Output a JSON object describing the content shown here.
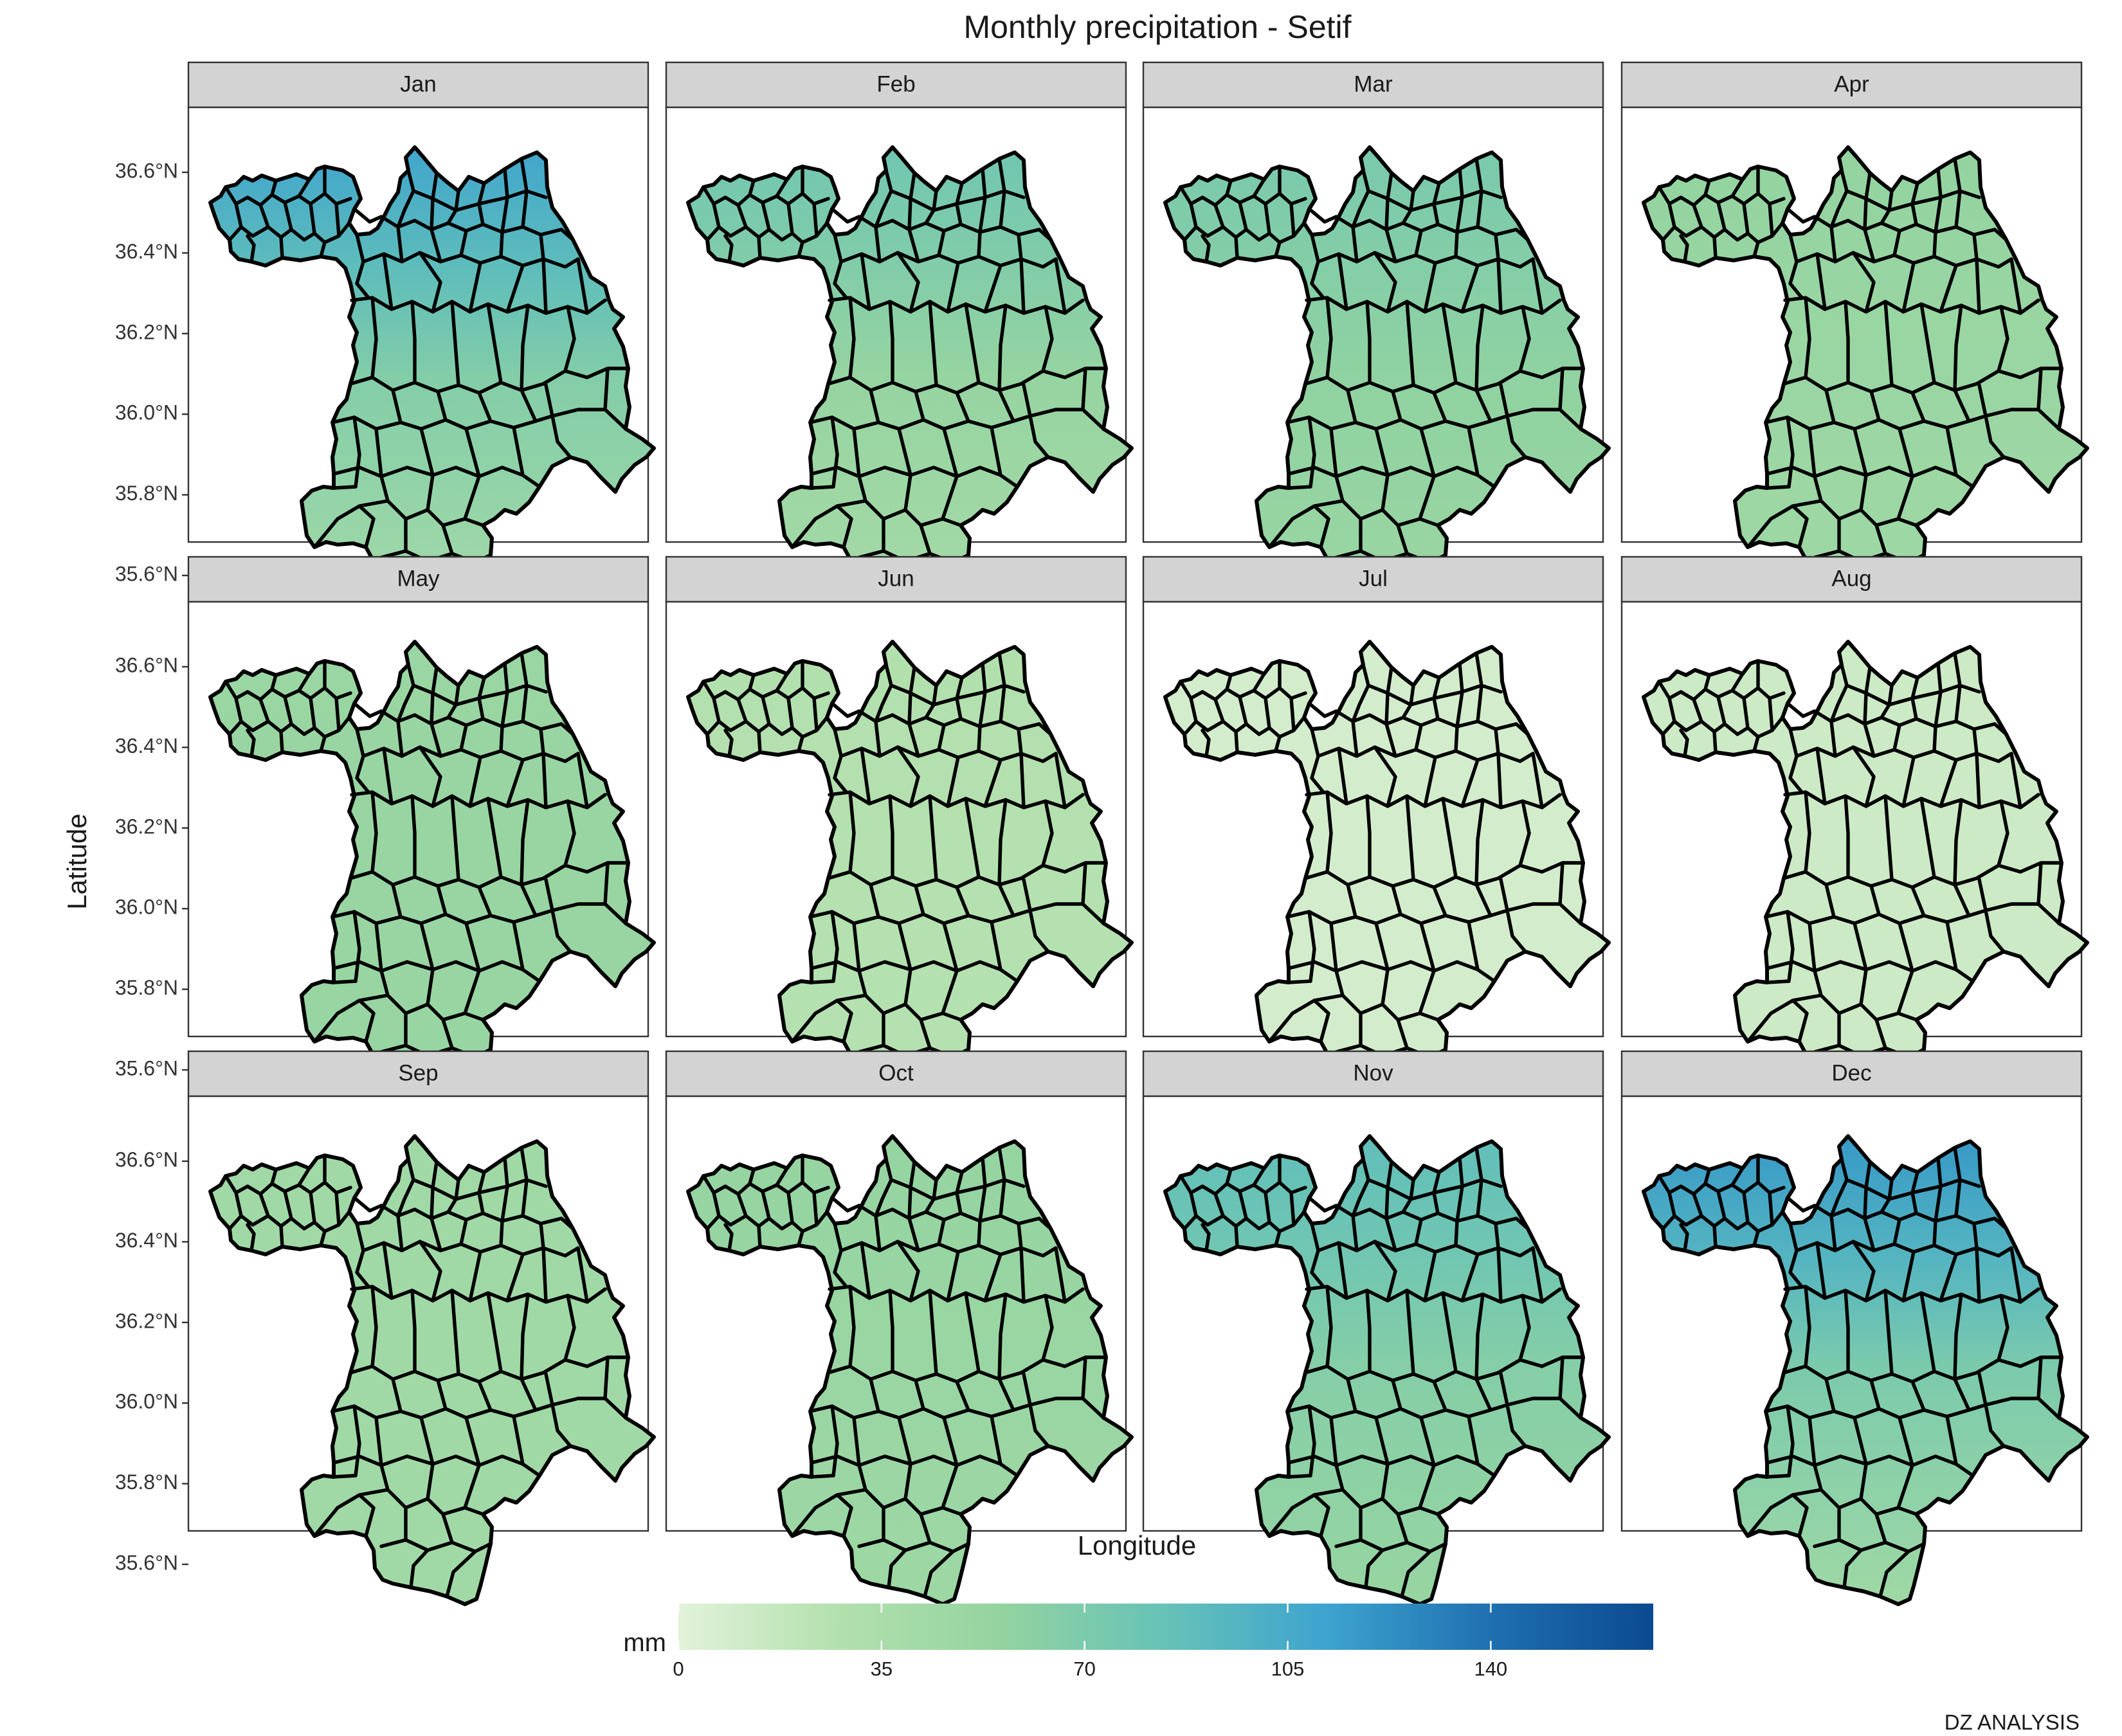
{
  "title": "Monthly precipitation - Setif",
  "x_axis_title": "Longitude",
  "y_axis_title": "Latitude",
  "caption": "DZ ANALYSIS",
  "legend": {
    "title": "mm",
    "range": [
      0,
      168
    ],
    "ticks": [
      0,
      35,
      70,
      105,
      140
    ],
    "tick_labels": [
      "0",
      "35",
      "70",
      "105",
      "140"
    ],
    "color_stops": [
      "#e2f3da",
      "#b2e0ad",
      "#93d3a0",
      "#66c2b7",
      "#3da3cf",
      "#1f70b0",
      "#0b4a91"
    ]
  },
  "y_ticks": [
    36.6,
    36.4,
    36.2,
    36.0,
    35.8,
    35.6
  ],
  "y_tick_labels": [
    "36.6°N",
    "36.4°N",
    "36.2°N",
    "36.0°N",
    "35.8°N",
    "35.6°N"
  ],
  "panels": [
    {
      "label": "Jan",
      "north": 110,
      "south": 42
    },
    {
      "label": "Feb",
      "north": 78,
      "south": 40
    },
    {
      "label": "Mar",
      "north": 72,
      "south": 50
    },
    {
      "label": "Apr",
      "north": 56,
      "south": 46
    },
    {
      "label": "May",
      "north": 50,
      "south": 52
    },
    {
      "label": "Jun",
      "north": 28,
      "south": 26
    },
    {
      "label": "Jul",
      "north": 9,
      "south": 9
    },
    {
      "label": "Aug",
      "north": 13,
      "south": 13
    },
    {
      "label": "Sep",
      "north": 44,
      "south": 44
    },
    {
      "label": "Oct",
      "north": 54,
      "south": 48
    },
    {
      "label": "Nov",
      "north": 88,
      "south": 52
    },
    {
      "label": "Dec",
      "north": 118,
      "south": 46
    }
  ]
}
